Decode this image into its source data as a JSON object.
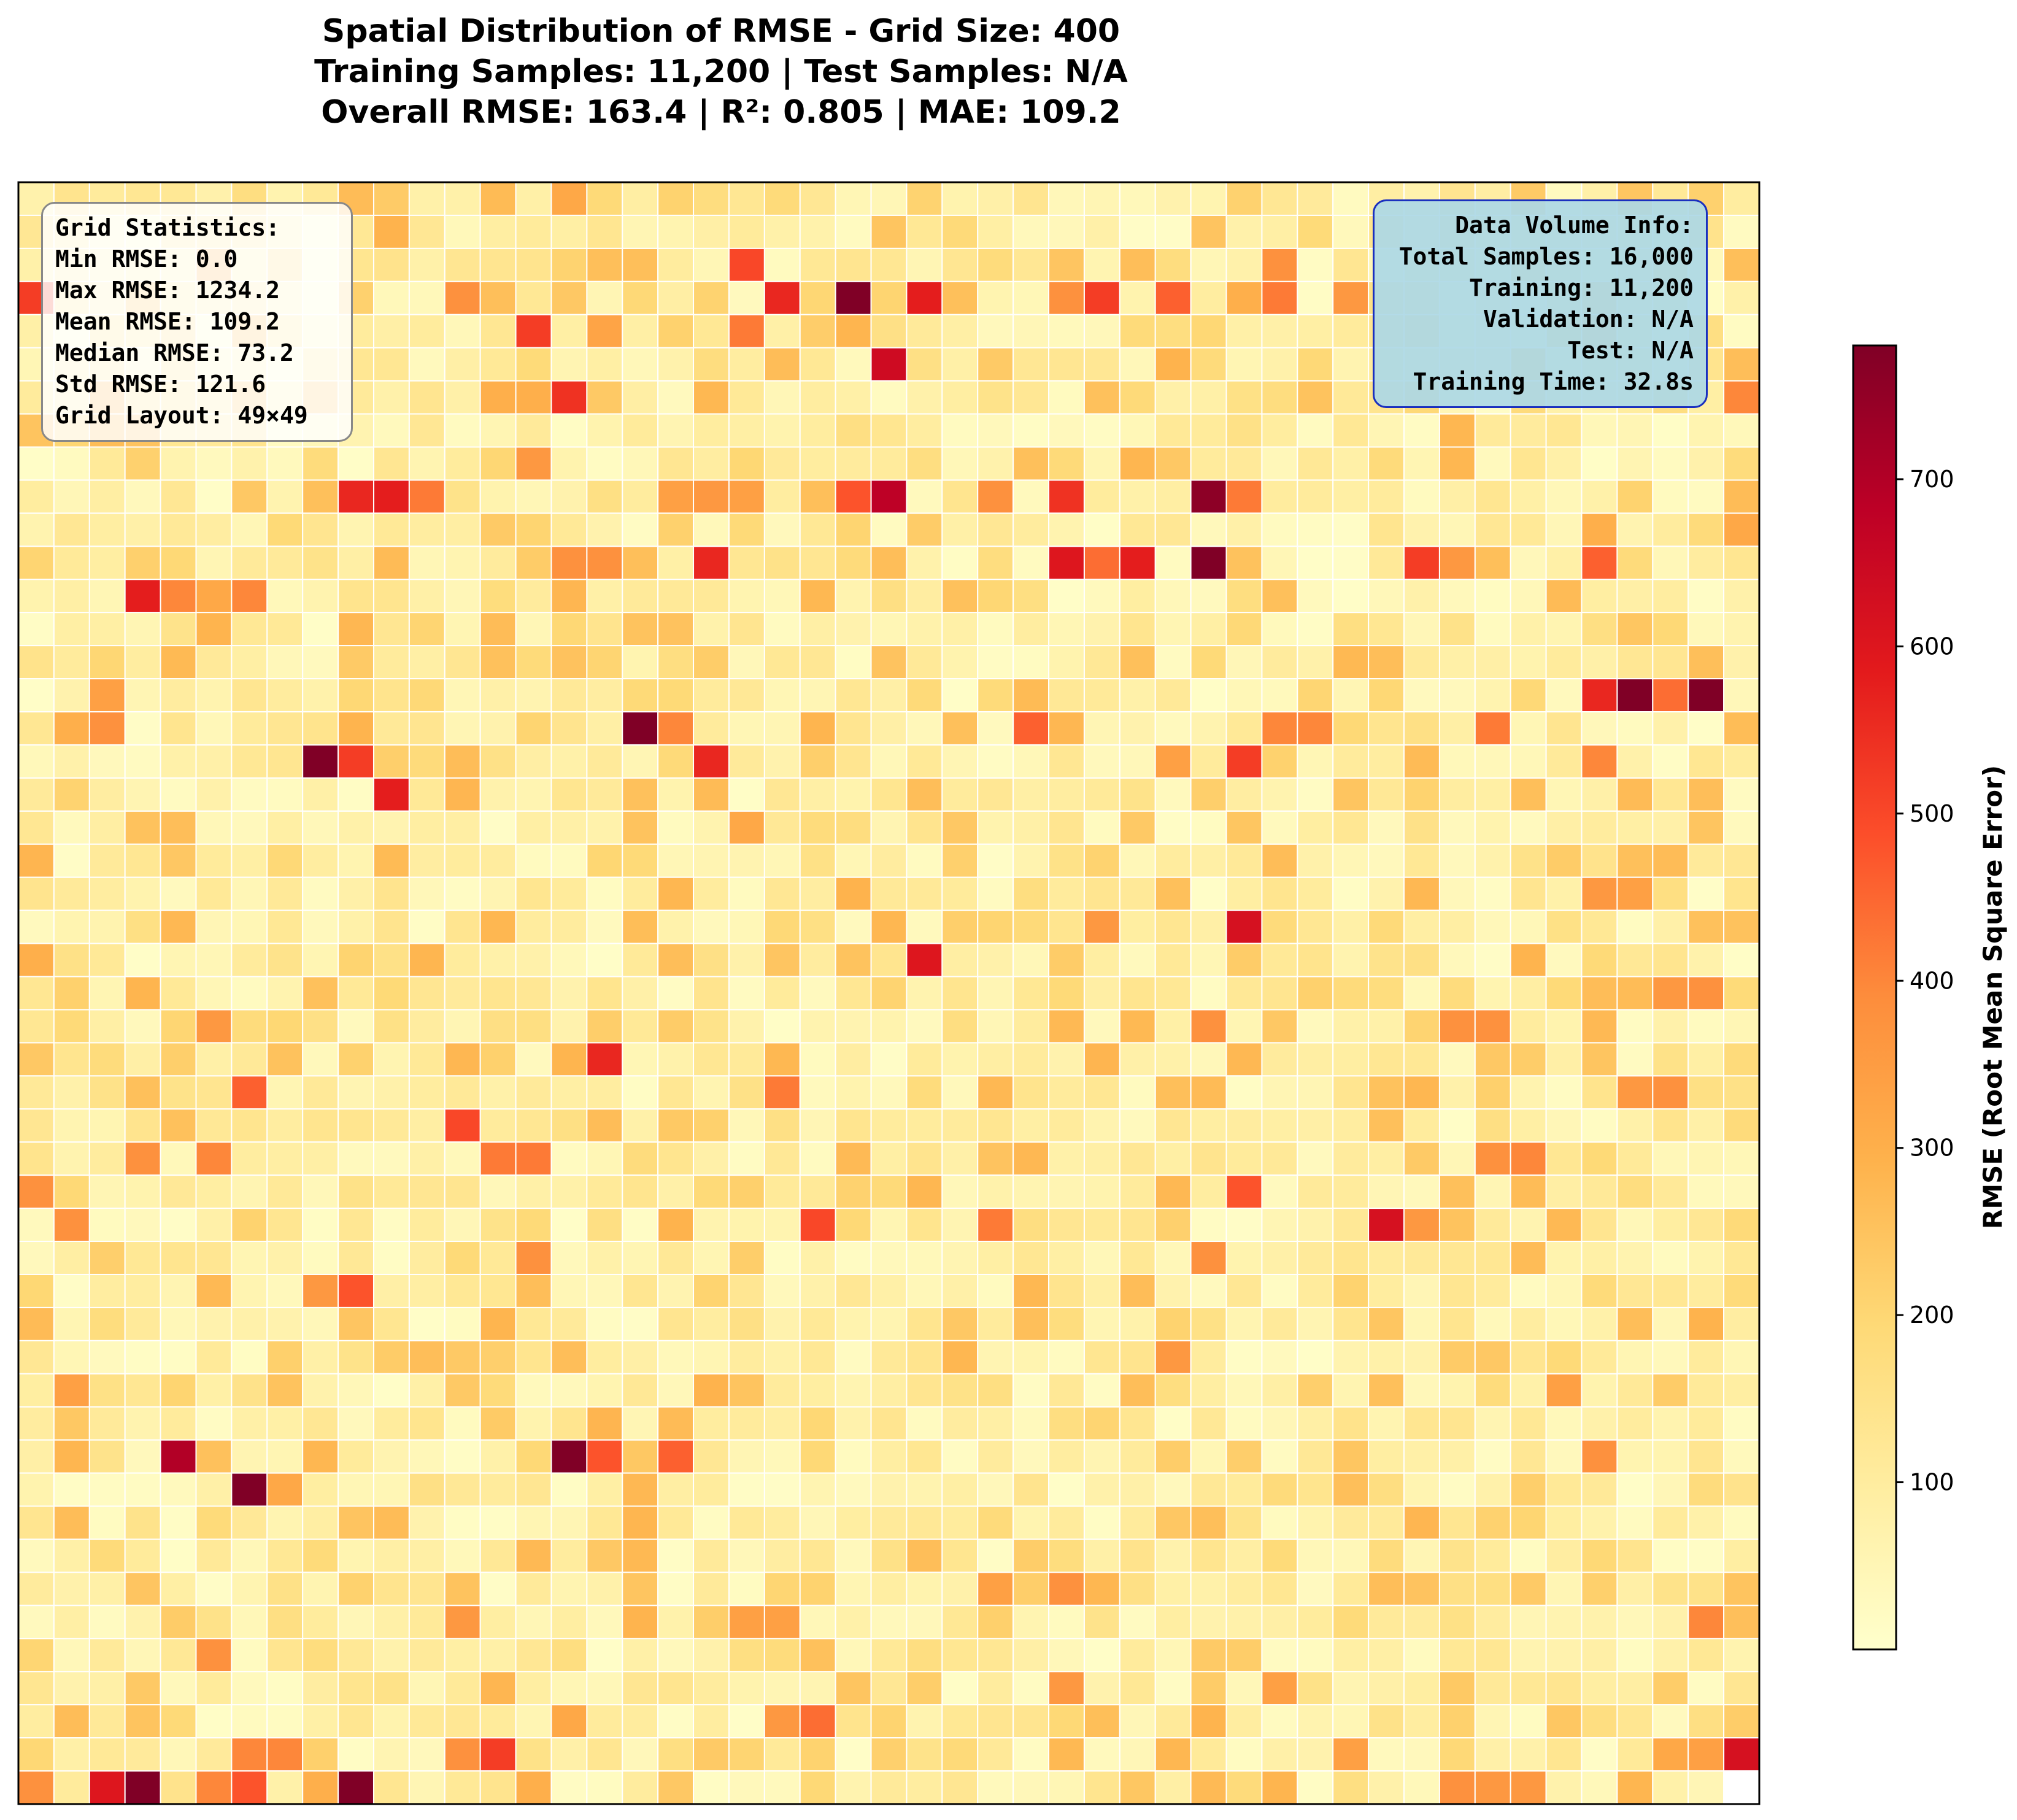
{
  "title_lines": [
    "Spatial Distribution of RMSE - Grid Size: 400",
    "Training Samples: 11,200 | Test Samples: N/A",
    "Overall RMSE: 163.4 | R²: 0.805 | MAE: 109.2"
  ],
  "grid_stats": {
    "heading": "Grid Statistics:",
    "min": "Min RMSE: 0.0",
    "max": "Max RMSE: 1234.2",
    "mean": "Mean RMSE: 109.2",
    "median": "Median RMSE: 73.2",
    "std": "Std RMSE: 121.6",
    "layout": "Grid Layout: 49×49"
  },
  "data_info": {
    "heading": "Data Volume Info:",
    "total": "Total Samples: 16,000",
    "training": "Training: 11,200",
    "validation": "Validation: N/A",
    "test": "Test: N/A",
    "time": "Training Time: 32.8s"
  },
  "chart_data": {
    "type": "heatmap",
    "rows": 49,
    "cols": 49,
    "value_unit": "RMSE",
    "colormap": "YlOrRd",
    "color_range": [
      0,
      780
    ],
    "colorbar": {
      "label": "RMSE (Root Mean Square Error)",
      "ticks": [
        100,
        200,
        300,
        400,
        500,
        600,
        700
      ]
    },
    "grid_lines": "white",
    "background_values_note": "cells not listed are low RMSE values (~0-120)",
    "highlighted_cells": [
      {
        "row": 0,
        "col": 10,
        "value": 230
      },
      {
        "row": 0,
        "col": 15,
        "value": 320
      },
      {
        "row": 0,
        "col": 16,
        "value": 190
      },
      {
        "row": 0,
        "col": 25,
        "value": 210
      },
      {
        "row": 2,
        "col": 20,
        "value": 500
      },
      {
        "row": 2,
        "col": 16,
        "value": 260
      },
      {
        "row": 2,
        "col": 17,
        "value": 260
      },
      {
        "row": 2,
        "col": 35,
        "value": 380
      },
      {
        "row": 3,
        "col": 0,
        "value": 520
      },
      {
        "row": 3,
        "col": 12,
        "value": 380
      },
      {
        "row": 3,
        "col": 21,
        "value": 560
      },
      {
        "row": 3,
        "col": 23,
        "value": 780
      },
      {
        "row": 3,
        "col": 25,
        "value": 580
      },
      {
        "row": 3,
        "col": 29,
        "value": 380
      },
      {
        "row": 3,
        "col": 30,
        "value": 520
      },
      {
        "row": 3,
        "col": 32,
        "value": 460
      },
      {
        "row": 3,
        "col": 34,
        "value": 300
      },
      {
        "row": 3,
        "col": 35,
        "value": 420
      },
      {
        "row": 3,
        "col": 37,
        "value": 360
      },
      {
        "row": 4,
        "col": 14,
        "value": 520
      },
      {
        "row": 4,
        "col": 20,
        "value": 420
      },
      {
        "row": 4,
        "col": 16,
        "value": 330
      },
      {
        "row": 5,
        "col": 24,
        "value": 640
      },
      {
        "row": 6,
        "col": 15,
        "value": 540
      },
      {
        "row": 6,
        "col": 13,
        "value": 300
      },
      {
        "row": 6,
        "col": 14,
        "value": 300
      },
      {
        "row": 6,
        "col": 48,
        "value": 400
      },
      {
        "row": 7,
        "col": 40,
        "value": 280
      },
      {
        "row": 8,
        "col": 14,
        "value": 360
      },
      {
        "row": 8,
        "col": 40,
        "value": 280
      },
      {
        "row": 9,
        "col": 9,
        "value": 560
      },
      {
        "row": 9,
        "col": 10,
        "value": 580
      },
      {
        "row": 9,
        "col": 11,
        "value": 420
      },
      {
        "row": 9,
        "col": 18,
        "value": 340
      },
      {
        "row": 9,
        "col": 19,
        "value": 360
      },
      {
        "row": 9,
        "col": 20,
        "value": 340
      },
      {
        "row": 9,
        "col": 23,
        "value": 480
      },
      {
        "row": 9,
        "col": 24,
        "value": 680
      },
      {
        "row": 9,
        "col": 27,
        "value": 380
      },
      {
        "row": 9,
        "col": 29,
        "value": 540
      },
      {
        "row": 9,
        "col": 33,
        "value": 760
      },
      {
        "row": 9,
        "col": 34,
        "value": 420
      },
      {
        "row": 10,
        "col": 44,
        "value": 300
      },
      {
        "row": 10,
        "col": 48,
        "value": 320
      },
      {
        "row": 11,
        "col": 15,
        "value": 380
      },
      {
        "row": 11,
        "col": 16,
        "value": 380
      },
      {
        "row": 11,
        "col": 19,
        "value": 560
      },
      {
        "row": 11,
        "col": 29,
        "value": 600
      },
      {
        "row": 11,
        "col": 30,
        "value": 440
      },
      {
        "row": 11,
        "col": 31,
        "value": 580
      },
      {
        "row": 11,
        "col": 33,
        "value": 780
      },
      {
        "row": 11,
        "col": 39,
        "value": 520
      },
      {
        "row": 11,
        "col": 40,
        "value": 360
      },
      {
        "row": 11,
        "col": 44,
        "value": 460
      },
      {
        "row": 12,
        "col": 3,
        "value": 580
      },
      {
        "row": 12,
        "col": 4,
        "value": 400
      },
      {
        "row": 12,
        "col": 5,
        "value": 320
      },
      {
        "row": 12,
        "col": 6,
        "value": 400
      },
      {
        "row": 15,
        "col": 2,
        "value": 340
      },
      {
        "row": 15,
        "col": 44,
        "value": 560
      },
      {
        "row": 15,
        "col": 45,
        "value": 780
      },
      {
        "row": 15,
        "col": 46,
        "value": 440
      },
      {
        "row": 15,
        "col": 47,
        "value": 780
      },
      {
        "row": 16,
        "col": 1,
        "value": 300
      },
      {
        "row": 16,
        "col": 2,
        "value": 380
      },
      {
        "row": 16,
        "col": 17,
        "value": 780
      },
      {
        "row": 16,
        "col": 18,
        "value": 400
      },
      {
        "row": 16,
        "col": 28,
        "value": 460
      },
      {
        "row": 16,
        "col": 35,
        "value": 400
      },
      {
        "row": 16,
        "col": 36,
        "value": 400
      },
      {
        "row": 16,
        "col": 41,
        "value": 420
      },
      {
        "row": 17,
        "col": 8,
        "value": 780
      },
      {
        "row": 17,
        "col": 9,
        "value": 520
      },
      {
        "row": 17,
        "col": 19,
        "value": 560
      },
      {
        "row": 17,
        "col": 34,
        "value": 520
      },
      {
        "row": 17,
        "col": 32,
        "value": 340
      },
      {
        "row": 17,
        "col": 44,
        "value": 400
      },
      {
        "row": 18,
        "col": 10,
        "value": 580
      },
      {
        "row": 19,
        "col": 20,
        "value": 320
      },
      {
        "row": 21,
        "col": 44,
        "value": 360
      },
      {
        "row": 21,
        "col": 45,
        "value": 340
      },
      {
        "row": 22,
        "col": 34,
        "value": 620
      },
      {
        "row": 22,
        "col": 30,
        "value": 360
      },
      {
        "row": 23,
        "col": 25,
        "value": 600
      },
      {
        "row": 23,
        "col": 0,
        "value": 300
      },
      {
        "row": 24,
        "col": 46,
        "value": 360
      },
      {
        "row": 24,
        "col": 47,
        "value": 380
      },
      {
        "row": 25,
        "col": 5,
        "value": 360
      },
      {
        "row": 25,
        "col": 33,
        "value": 380
      },
      {
        "row": 25,
        "col": 40,
        "value": 380
      },
      {
        "row": 25,
        "col": 41,
        "value": 380
      },
      {
        "row": 26,
        "col": 16,
        "value": 560
      },
      {
        "row": 27,
        "col": 6,
        "value": 460
      },
      {
        "row": 27,
        "col": 21,
        "value": 420
      },
      {
        "row": 27,
        "col": 45,
        "value": 360
      },
      {
        "row": 27,
        "col": 46,
        "value": 380
      },
      {
        "row": 28,
        "col": 12,
        "value": 500
      },
      {
        "row": 29,
        "col": 3,
        "value": 380
      },
      {
        "row": 29,
        "col": 5,
        "value": 400
      },
      {
        "row": 29,
        "col": 13,
        "value": 420
      },
      {
        "row": 29,
        "col": 14,
        "value": 420
      },
      {
        "row": 29,
        "col": 41,
        "value": 380
      },
      {
        "row": 29,
        "col": 42,
        "value": 400
      },
      {
        "row": 30,
        "col": 0,
        "value": 380
      },
      {
        "row": 30,
        "col": 34,
        "value": 480
      },
      {
        "row": 31,
        "col": 1,
        "value": 380
      },
      {
        "row": 31,
        "col": 22,
        "value": 500
      },
      {
        "row": 31,
        "col": 27,
        "value": 420
      },
      {
        "row": 31,
        "col": 38,
        "value": 620
      },
      {
        "row": 31,
        "col": 39,
        "value": 360
      },
      {
        "row": 32,
        "col": 14,
        "value": 380
      },
      {
        "row": 32,
        "col": 33,
        "value": 380
      },
      {
        "row": 33,
        "col": 9,
        "value": 480
      },
      {
        "row": 33,
        "col": 8,
        "value": 360
      },
      {
        "row": 35,
        "col": 32,
        "value": 360
      },
      {
        "row": 36,
        "col": 1,
        "value": 340
      },
      {
        "row": 36,
        "col": 43,
        "value": 340
      },
      {
        "row": 38,
        "col": 4,
        "value": 700
      },
      {
        "row": 38,
        "col": 15,
        "value": 780
      },
      {
        "row": 38,
        "col": 16,
        "value": 480
      },
      {
        "row": 38,
        "col": 18,
        "value": 460
      },
      {
        "row": 38,
        "col": 44,
        "value": 380
      },
      {
        "row": 39,
        "col": 6,
        "value": 780
      },
      {
        "row": 39,
        "col": 7,
        "value": 320
      },
      {
        "row": 42,
        "col": 27,
        "value": 340
      },
      {
        "row": 42,
        "col": 29,
        "value": 380
      },
      {
        "row": 43,
        "col": 12,
        "value": 360
      },
      {
        "row": 43,
        "col": 20,
        "value": 340
      },
      {
        "row": 43,
        "col": 21,
        "value": 340
      },
      {
        "row": 43,
        "col": 47,
        "value": 400
      },
      {
        "row": 44,
        "col": 5,
        "value": 380
      },
      {
        "row": 45,
        "col": 29,
        "value": 360
      },
      {
        "row": 45,
        "col": 35,
        "value": 340
      },
      {
        "row": 46,
        "col": 15,
        "value": 320
      },
      {
        "row": 46,
        "col": 21,
        "value": 360
      },
      {
        "row": 46,
        "col": 22,
        "value": 440
      },
      {
        "row": 47,
        "col": 6,
        "value": 400
      },
      {
        "row": 47,
        "col": 7,
        "value": 400
      },
      {
        "row": 47,
        "col": 12,
        "value": 380
      },
      {
        "row": 47,
        "col": 13,
        "value": 520
      },
      {
        "row": 47,
        "col": 37,
        "value": 340
      },
      {
        "row": 47,
        "col": 46,
        "value": 320
      },
      {
        "row": 47,
        "col": 47,
        "value": 340
      },
      {
        "row": 47,
        "col": 48,
        "value": 620
      },
      {
        "row": 48,
        "col": 0,
        "value": 380
      },
      {
        "row": 48,
        "col": 2,
        "value": 600
      },
      {
        "row": 48,
        "col": 3,
        "value": 780
      },
      {
        "row": 48,
        "col": 5,
        "value": 400
      },
      {
        "row": 48,
        "col": 6,
        "value": 480
      },
      {
        "row": 48,
        "col": 8,
        "value": 300
      },
      {
        "row": 48,
        "col": 9,
        "value": 780
      },
      {
        "row": 48,
        "col": 14,
        "value": 300
      },
      {
        "row": 48,
        "col": 40,
        "value": 380
      },
      {
        "row": 48,
        "col": 41,
        "value": 360
      },
      {
        "row": 48,
        "col": 42,
        "value": 360
      },
      {
        "row": 48,
        "col": 3,
        "value": 780
      }
    ]
  }
}
